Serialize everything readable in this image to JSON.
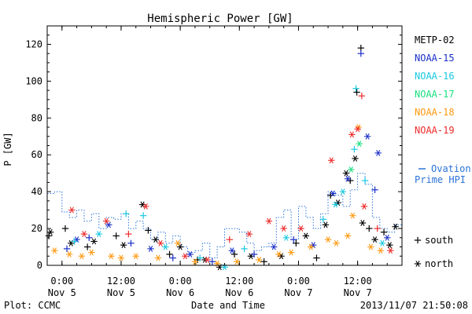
{
  "chart_data": {
    "type": "scatter",
    "title": "Hemispheric Power [GW]",
    "ylabel": "P [GW]",
    "xlabel": "Date and Time",
    "x_range": [
      "2013-11-04T21:00",
      "2013-11-07T21:00"
    ],
    "ylim": [
      0,
      130
    ],
    "yticks": [
      0,
      20,
      40,
      60,
      80,
      100,
      120
    ],
    "xticks": [
      {
        "t": "2013-11-05T00:00",
        "time": "0:00",
        "date": "Nov 5"
      },
      {
        "t": "2013-11-05T12:00",
        "time": "12:00",
        "date": "Nov 5"
      },
      {
        "t": "2013-11-06T00:00",
        "time": "0:00",
        "date": "Nov 6"
      },
      {
        "t": "2013-11-06T12:00",
        "time": "12:00",
        "date": "Nov 6"
      },
      {
        "t": "2013-11-07T00:00",
        "time": "0:00",
        "date": "Nov 7"
      },
      {
        "t": "2013-11-07T12:00",
        "time": "12:00",
        "date": "Nov 7"
      }
    ],
    "grid": false,
    "legend_position": "right",
    "series": [
      {
        "name": "METP-02",
        "color": "#000000",
        "points": [
          {
            "t": "2013-11-04T21:20",
            "v": 16,
            "m": "+"
          },
          {
            "t": "2013-11-04T21:40",
            "v": 18,
            "m": "*"
          },
          {
            "t": "2013-11-05T00:40",
            "v": 20,
            "m": "+"
          },
          {
            "t": "2013-11-05T01:50",
            "v": 12,
            "m": "*"
          },
          {
            "t": "2013-11-05T05:10",
            "v": 10,
            "m": "+"
          },
          {
            "t": "2013-11-05T06:30",
            "v": 13,
            "m": "*"
          },
          {
            "t": "2013-11-05T11:00",
            "v": 16,
            "m": "+"
          },
          {
            "t": "2013-11-05T12:30",
            "v": 11,
            "m": "*"
          },
          {
            "t": "2013-11-05T16:20",
            "v": 33,
            "m": "*"
          },
          {
            "t": "2013-11-05T17:30",
            "v": 19,
            "m": "+"
          },
          {
            "t": "2013-11-05T19:00",
            "v": 14,
            "m": "*"
          },
          {
            "t": "2013-11-05T21:50",
            "v": 6,
            "m": "+"
          },
          {
            "t": "2013-11-06T00:00",
            "v": 10,
            "m": "*"
          },
          {
            "t": "2013-11-06T03:30",
            "v": 3,
            "m": "+"
          },
          {
            "t": "2013-11-06T05:00",
            "v": 3,
            "m": "*"
          },
          {
            "t": "2013-11-06T08:00",
            "v": -1,
            "m": "*"
          },
          {
            "t": "2013-11-06T11:00",
            "v": 6,
            "m": "+"
          },
          {
            "t": "2013-11-06T14:20",
            "v": 5,
            "m": "*"
          },
          {
            "t": "2013-11-06T17:00",
            "v": 2,
            "m": "+"
          },
          {
            "t": "2013-11-06T20:30",
            "v": 5,
            "m": "*"
          },
          {
            "t": "2013-11-06T23:30",
            "v": 12,
            "m": "+"
          },
          {
            "t": "2013-11-07T01:30",
            "v": 16,
            "m": "*"
          },
          {
            "t": "2013-11-07T03:40",
            "v": 4,
            "m": "+"
          },
          {
            "t": "2013-11-07T05:30",
            "v": 22,
            "m": "*"
          },
          {
            "t": "2013-11-07T06:30",
            "v": 38,
            "m": "+"
          },
          {
            "t": "2013-11-07T08:00",
            "v": 34,
            "m": "*"
          },
          {
            "t": "2013-11-07T09:40",
            "v": 50,
            "m": "*"
          },
          {
            "t": "2013-11-07T10:30",
            "v": 46,
            "m": "+"
          },
          {
            "t": "2013-11-07T11:30",
            "v": 58,
            "m": "*"
          },
          {
            "t": "2013-11-07T11:50",
            "v": 94,
            "m": "+"
          },
          {
            "t": "2013-11-07T12:40",
            "v": 118,
            "m": "+"
          },
          {
            "t": "2013-11-07T13:00",
            "v": 23,
            "m": "*"
          },
          {
            "t": "2013-11-07T14:20",
            "v": 20,
            "m": "+"
          },
          {
            "t": "2013-11-07T15:30",
            "v": 14,
            "m": "*"
          },
          {
            "t": "2013-11-07T17:20",
            "v": 18,
            "m": "+"
          },
          {
            "t": "2013-11-07T18:30",
            "v": 11,
            "m": "*"
          },
          {
            "t": "2013-11-07T19:40",
            "v": 21,
            "m": "*"
          }
        ]
      },
      {
        "name": "NOAA-15",
        "color": "#1a2fc8",
        "points": [
          {
            "t": "2013-11-05T01:00",
            "v": 9,
            "m": "+"
          },
          {
            "t": "2013-11-05T03:00",
            "v": 14,
            "m": "*"
          },
          {
            "t": "2013-11-05T05:30",
            "v": 15,
            "m": "+"
          },
          {
            "t": "2013-11-05T09:30",
            "v": 22,
            "m": "*"
          },
          {
            "t": "2013-11-05T14:00",
            "v": 12,
            "m": "+"
          },
          {
            "t": "2013-11-05T18:00",
            "v": 9,
            "m": "*"
          },
          {
            "t": "2013-11-05T22:30",
            "v": 4,
            "m": "+"
          },
          {
            "t": "2013-11-06T02:00",
            "v": 6,
            "m": "*"
          },
          {
            "t": "2013-11-06T06:30",
            "v": 2,
            "m": "+"
          },
          {
            "t": "2013-11-06T10:30",
            "v": 8,
            "m": "*"
          },
          {
            "t": "2013-11-06T15:00",
            "v": 6,
            "m": "+"
          },
          {
            "t": "2013-11-06T19:00",
            "v": 10,
            "m": "*"
          },
          {
            "t": "2013-11-06T23:00",
            "v": 14,
            "m": "+"
          },
          {
            "t": "2013-11-07T03:00",
            "v": 11,
            "m": "*"
          },
          {
            "t": "2013-11-07T07:00",
            "v": 39,
            "m": "*"
          },
          {
            "t": "2013-11-07T10:00",
            "v": 47,
            "m": "*"
          },
          {
            "t": "2013-11-07T12:40",
            "v": 115,
            "m": "+"
          },
          {
            "t": "2013-11-07T14:00",
            "v": 70,
            "m": "*"
          },
          {
            "t": "2013-11-07T15:30",
            "v": 41,
            "m": "+"
          },
          {
            "t": "2013-11-07T16:10",
            "v": 61,
            "m": "*"
          },
          {
            "t": "2013-11-07T18:00",
            "v": 15,
            "m": "*"
          }
        ]
      },
      {
        "name": "NOAA-16",
        "color": "#19c8e0",
        "points": [
          {
            "t": "2013-11-05T02:30",
            "v": 13,
            "m": "+"
          },
          {
            "t": "2013-11-05T07:30",
            "v": 17,
            "m": "*"
          },
          {
            "t": "2013-11-05T13:00",
            "v": 28,
            "m": "+"
          },
          {
            "t": "2013-11-05T16:30",
            "v": 27,
            "m": "+"
          },
          {
            "t": "2013-11-05T21:00",
            "v": 10,
            "m": "*"
          },
          {
            "t": "2013-11-06T04:00",
            "v": 4,
            "m": "+"
          },
          {
            "t": "2013-11-06T09:00",
            "v": -1,
            "m": "*"
          },
          {
            "t": "2013-11-06T13:00",
            "v": 9,
            "m": "+"
          },
          {
            "t": "2013-11-06T21:30",
            "v": 15,
            "m": "*"
          },
          {
            "t": "2013-11-07T05:00",
            "v": 25,
            "m": "+"
          },
          {
            "t": "2013-11-07T07:30",
            "v": 33,
            "m": "*"
          },
          {
            "t": "2013-11-07T09:00",
            "v": 40,
            "m": "*"
          },
          {
            "t": "2013-11-07T11:20",
            "v": 63,
            "m": "+"
          },
          {
            "t": "2013-11-07T11:40",
            "v": 96,
            "m": "+"
          },
          {
            "t": "2013-11-07T13:30",
            "v": 46,
            "m": "+"
          },
          {
            "t": "2013-11-07T17:00",
            "v": 12,
            "m": "*"
          }
        ]
      },
      {
        "name": "NOAA-17",
        "color": "#19e080",
        "points": [
          {
            "t": "2013-11-07T10:40",
            "v": 52,
            "m": "*"
          },
          {
            "t": "2013-11-07T12:20",
            "v": 66,
            "m": "*"
          }
        ]
      },
      {
        "name": "NOAA-18",
        "color": "#ff9911",
        "points": [
          {
            "t": "2013-11-04T22:30",
            "v": 8,
            "m": "*"
          },
          {
            "t": "2013-11-05T01:30",
            "v": 6,
            "m": "*"
          },
          {
            "t": "2013-11-05T04:00",
            "v": 5,
            "m": "*"
          },
          {
            "t": "2013-11-05T06:00",
            "v": 7,
            "m": "*"
          },
          {
            "t": "2013-11-05T10:00",
            "v": 5,
            "m": "*"
          },
          {
            "t": "2013-11-05T12:00",
            "v": 4,
            "m": "*"
          },
          {
            "t": "2013-11-05T15:00",
            "v": 5,
            "m": "*"
          },
          {
            "t": "2013-11-05T19:30",
            "v": 4,
            "m": "*"
          },
          {
            "t": "2013-11-05T23:30",
            "v": 12,
            "m": "*"
          },
          {
            "t": "2013-11-06T03:00",
            "v": 2,
            "m": "*"
          },
          {
            "t": "2013-11-06T07:30",
            "v": 1,
            "m": "*"
          },
          {
            "t": "2013-11-06T11:30",
            "v": 2,
            "m": "*"
          },
          {
            "t": "2013-11-06T16:00",
            "v": 3,
            "m": "*"
          },
          {
            "t": "2013-11-06T20:00",
            "v": 6,
            "m": "*"
          },
          {
            "t": "2013-11-06T22:30",
            "v": 7,
            "m": "*"
          },
          {
            "t": "2013-11-07T02:30",
            "v": 10,
            "m": "*"
          },
          {
            "t": "2013-11-07T06:00",
            "v": 14,
            "m": "*"
          },
          {
            "t": "2013-11-07T07:40",
            "v": 12,
            "m": "*"
          },
          {
            "t": "2013-11-07T10:00",
            "v": 16,
            "m": "*"
          },
          {
            "t": "2013-11-07T11:00",
            "v": 27,
            "m": "*"
          },
          {
            "t": "2013-11-07T12:10",
            "v": 75,
            "m": "*"
          },
          {
            "t": "2013-11-07T14:40",
            "v": 10,
            "m": "*"
          },
          {
            "t": "2013-11-07T16:40",
            "v": 8,
            "m": "*"
          }
        ]
      },
      {
        "name": "NOAA-19",
        "color": "#ee2a2a",
        "points": [
          {
            "t": "2013-11-05T02:00",
            "v": 30,
            "m": "*"
          },
          {
            "t": "2013-11-05T04:30",
            "v": 17,
            "m": "*"
          },
          {
            "t": "2013-11-05T09:00",
            "v": 24,
            "m": "*"
          },
          {
            "t": "2013-11-05T13:30",
            "v": 17,
            "m": "+"
          },
          {
            "t": "2013-11-05T17:00",
            "v": 32,
            "m": "*"
          },
          {
            "t": "2013-11-05T20:00",
            "v": 12,
            "m": "*"
          },
          {
            "t": "2013-11-06T01:00",
            "v": 5,
            "m": "*"
          },
          {
            "t": "2013-11-06T05:30",
            "v": 3,
            "m": "*"
          },
          {
            "t": "2013-11-06T10:00",
            "v": 14,
            "m": "+"
          },
          {
            "t": "2013-11-06T14:00",
            "v": 17,
            "m": "*"
          },
          {
            "t": "2013-11-06T18:00",
            "v": 24,
            "m": "*"
          },
          {
            "t": "2013-11-06T21:00",
            "v": 20,
            "m": "*"
          },
          {
            "t": "2013-11-07T00:30",
            "v": 20,
            "m": "*"
          },
          {
            "t": "2013-11-07T06:40",
            "v": 57,
            "m": "*"
          },
          {
            "t": "2013-11-07T10:50",
            "v": 71,
            "m": "*"
          },
          {
            "t": "2013-11-07T12:00",
            "v": 74,
            "m": "*"
          },
          {
            "t": "2013-11-07T12:50",
            "v": 92,
            "m": "+"
          },
          {
            "t": "2013-11-07T13:20",
            "v": 32,
            "m": "*"
          },
          {
            "t": "2013-11-07T16:00",
            "v": 20,
            "m": "+"
          },
          {
            "t": "2013-11-07T18:40",
            "v": 8,
            "m": "*"
          }
        ]
      }
    ],
    "ovation": {
      "name": "Ovation Prime HPI",
      "label_lines": [
        "Ovation",
        "Prime HPI"
      ],
      "color": "#2a73d8",
      "times": [
        "2013-11-04T21:00",
        "2013-11-04T22:30",
        "2013-11-05T00:00",
        "2013-11-05T01:30",
        "2013-11-05T03:00",
        "2013-11-05T04:30",
        "2013-11-05T06:00",
        "2013-11-05T07:30",
        "2013-11-05T09:00",
        "2013-11-05T10:30",
        "2013-11-05T12:00",
        "2013-11-05T13:30",
        "2013-11-05T15:00",
        "2013-11-05T16:30",
        "2013-11-05T18:00",
        "2013-11-05T19:30",
        "2013-11-05T21:00",
        "2013-11-05T22:30",
        "2013-11-06T00:00",
        "2013-11-06T01:30",
        "2013-11-06T03:00",
        "2013-11-06T04:30",
        "2013-11-06T06:00",
        "2013-11-06T07:30",
        "2013-11-06T09:00",
        "2013-11-06T10:30",
        "2013-11-06T12:00",
        "2013-11-06T13:30",
        "2013-11-06T15:00",
        "2013-11-06T16:30",
        "2013-11-06T18:00",
        "2013-11-06T19:30",
        "2013-11-06T21:00",
        "2013-11-06T22:30",
        "2013-11-07T00:00",
        "2013-11-07T01:30",
        "2013-11-07T03:00",
        "2013-11-07T04:30",
        "2013-11-07T06:00",
        "2013-11-07T07:30",
        "2013-11-07T09:00",
        "2013-11-07T10:30",
        "2013-11-07T12:00",
        "2013-11-07T13:30",
        "2013-11-07T15:00",
        "2013-11-07T16:30",
        "2013-11-07T18:00",
        "2013-11-07T19:30",
        "2013-11-07T21:00"
      ],
      "values": [
        39,
        40,
        29,
        26,
        30,
        24,
        28,
        20,
        26,
        25,
        28,
        20,
        24,
        20,
        14,
        18,
        12,
        16,
        10,
        7,
        8,
        12,
        4,
        10,
        20,
        20,
        18,
        12,
        8,
        10,
        12,
        26,
        30,
        14,
        32,
        26,
        20,
        28,
        40,
        38,
        32,
        41,
        50,
        44,
        26,
        20,
        18,
        22,
        28
      ]
    },
    "symbol_legend": [
      {
        "symbol": "+",
        "label": "south"
      },
      {
        "symbol": "*",
        "label": "north"
      }
    ]
  },
  "footer": {
    "left": "Plot: CCMC",
    "right": "2013/11/07 21:50:08"
  }
}
